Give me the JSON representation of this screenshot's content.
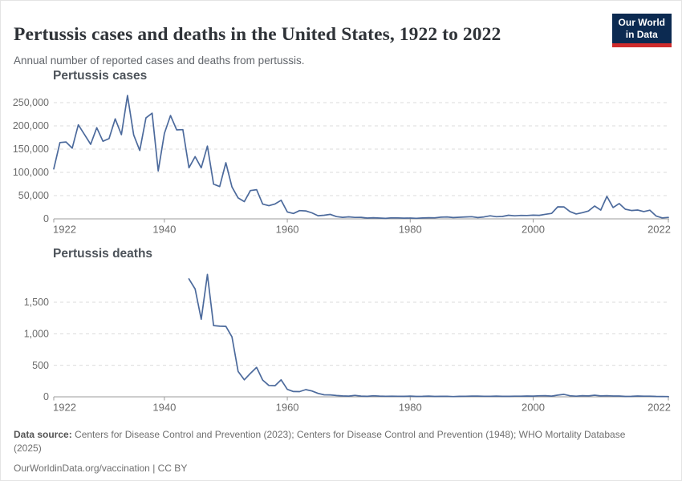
{
  "header": {
    "title": "Pertussis cases and deaths in the United States, 1922 to 2022",
    "subtitle": "Annual number of reported cases and deaths from pertussis.",
    "logo": {
      "line1": "Our World",
      "line2": "in Data",
      "bg_color": "#0c2a51",
      "accent_color": "#cf2b2b"
    }
  },
  "footer": {
    "datasource_label": "Data source:",
    "datasource_text": "Centers for Disease Control and Prevention (2023); Centers for Disease Control and Prevention (1948); WHO Mortality Database (2025)",
    "license_line": "OurWorldinData.org/vaccination | CC BY"
  },
  "chart_data": [
    {
      "type": "line",
      "title": "Pertussis cases",
      "xlabel": "",
      "ylabel": "",
      "xlim": [
        1922,
        2022
      ],
      "ylim": [
        0,
        250000
      ],
      "grid": "horizontal-dashed",
      "legend": "none",
      "line_color": "#4c6a9c",
      "xticks": [
        1922,
        1940,
        1960,
        1980,
        2000,
        2022
      ],
      "xtick_labels": [
        "1922",
        "1940",
        "1960",
        "1980",
        "2000",
        "2022"
      ],
      "yticks": [
        0,
        50000,
        100000,
        150000,
        200000,
        250000
      ],
      "ytick_labels": [
        "0",
        "50,000",
        "100,000",
        "150,000",
        "200,000",
        "250,000"
      ],
      "x": [
        1922,
        1923,
        1924,
        1925,
        1926,
        1927,
        1928,
        1929,
        1930,
        1931,
        1932,
        1933,
        1934,
        1935,
        1936,
        1937,
        1938,
        1939,
        1940,
        1941,
        1942,
        1943,
        1944,
        1945,
        1946,
        1947,
        1948,
        1949,
        1950,
        1951,
        1952,
        1953,
        1954,
        1955,
        1956,
        1957,
        1958,
        1959,
        1960,
        1961,
        1962,
        1963,
        1964,
        1965,
        1966,
        1967,
        1968,
        1969,
        1970,
        1971,
        1972,
        1973,
        1974,
        1975,
        1976,
        1977,
        1978,
        1979,
        1980,
        1981,
        1982,
        1983,
        1984,
        1985,
        1986,
        1987,
        1988,
        1989,
        1990,
        1991,
        1992,
        1993,
        1994,
        1995,
        1996,
        1997,
        1998,
        1999,
        2000,
        2001,
        2002,
        2003,
        2004,
        2005,
        2006,
        2007,
        2008,
        2009,
        2010,
        2011,
        2012,
        2013,
        2014,
        2015,
        2016,
        2017,
        2018,
        2019,
        2020,
        2021,
        2022
      ],
      "values": [
        107473,
        164191,
        165418,
        152003,
        202210,
        181411,
        160417,
        196000,
        166914,
        172500,
        215000,
        181000,
        265269,
        180518,
        147000,
        217000,
        227319,
        103188,
        183866,
        222202,
        191383,
        191890,
        109873,
        133792,
        109860,
        156517,
        74715,
        69479,
        120718,
        68687,
        45030,
        37129,
        60886,
        62786,
        31732,
        28295,
        32148,
        40005,
        14809,
        11468,
        17749,
        17135,
        13005,
        6799,
        7717,
        9718,
        4810,
        3285,
        4249,
        3036,
        3287,
        1759,
        2402,
        1738,
        1010,
        2177,
        2063,
        1623,
        1730,
        1248,
        1895,
        2463,
        2276,
        3589,
        4195,
        2823,
        3450,
        4157,
        4570,
        2719,
        4083,
        6586,
        4617,
        5137,
        7796,
        6564,
        7405,
        7298,
        7867,
        7580,
        9771,
        11647,
        25827,
        25616,
        15632,
        10454,
        13278,
        16858,
        27550,
        18719,
        48277,
        24231,
        32971,
        20762,
        17972,
        18975,
        15609,
        18617,
        6124,
        2116,
        3044
      ]
    },
    {
      "type": "line",
      "title": "Pertussis deaths",
      "xlabel": "",
      "ylabel": "",
      "xlim": [
        1922,
        2022
      ],
      "ylim": [
        0,
        1500
      ],
      "grid": "horizontal-dashed",
      "legend": "none",
      "line_color": "#4c6a9c",
      "xticks": [
        1922,
        1940,
        1960,
        1980,
        2000,
        2022
      ],
      "xtick_labels": [
        "1922",
        "1940",
        "1960",
        "1980",
        "2000",
        "2022"
      ],
      "yticks": [
        0,
        500,
        1000,
        1500
      ],
      "ytick_labels": [
        "0",
        "500",
        "1,000",
        "1,500"
      ],
      "x": [
        1944,
        1945,
        1946,
        1947,
        1948,
        1949,
        1950,
        1951,
        1952,
        1953,
        1954,
        1955,
        1956,
        1957,
        1958,
        1959,
        1960,
        1961,
        1962,
        1963,
        1964,
        1965,
        1966,
        1967,
        1968,
        1969,
        1970,
        1971,
        1972,
        1973,
        1974,
        1975,
        1976,
        1977,
        1978,
        1979,
        1980,
        1981,
        1982,
        1983,
        1984,
        1985,
        1986,
        1987,
        1988,
        1989,
        1990,
        1991,
        1992,
        1993,
        1994,
        1995,
        1996,
        1997,
        1998,
        1999,
        2000,
        2001,
        2002,
        2003,
        2004,
        2005,
        2006,
        2007,
        2008,
        2009,
        2010,
        2011,
        2012,
        2013,
        2014,
        2015,
        2016,
        2017,
        2018,
        2019,
        2020,
        2021,
        2022
      ],
      "values": [
        1870,
        1710,
        1230,
        1940,
        1130,
        1120,
        1118,
        951,
        402,
        270,
        373,
        467,
        266,
        181,
        177,
        269,
        118,
        84,
        83,
        115,
        93,
        55,
        32,
        31,
        20,
        14,
        12,
        23,
        12,
        8,
        16,
        11,
        9,
        10,
        9,
        8,
        11,
        6,
        7,
        11,
        6,
        7,
        9,
        4,
        7,
        9,
        12,
        12,
        9,
        9,
        12,
        7,
        7,
        10,
        10,
        13,
        12,
        17,
        18,
        11,
        27,
        39,
        16,
        10,
        18,
        14,
        26,
        14,
        18,
        13,
        13,
        6,
        8,
        13,
        10,
        10,
        6,
        5,
        4
      ]
    }
  ]
}
